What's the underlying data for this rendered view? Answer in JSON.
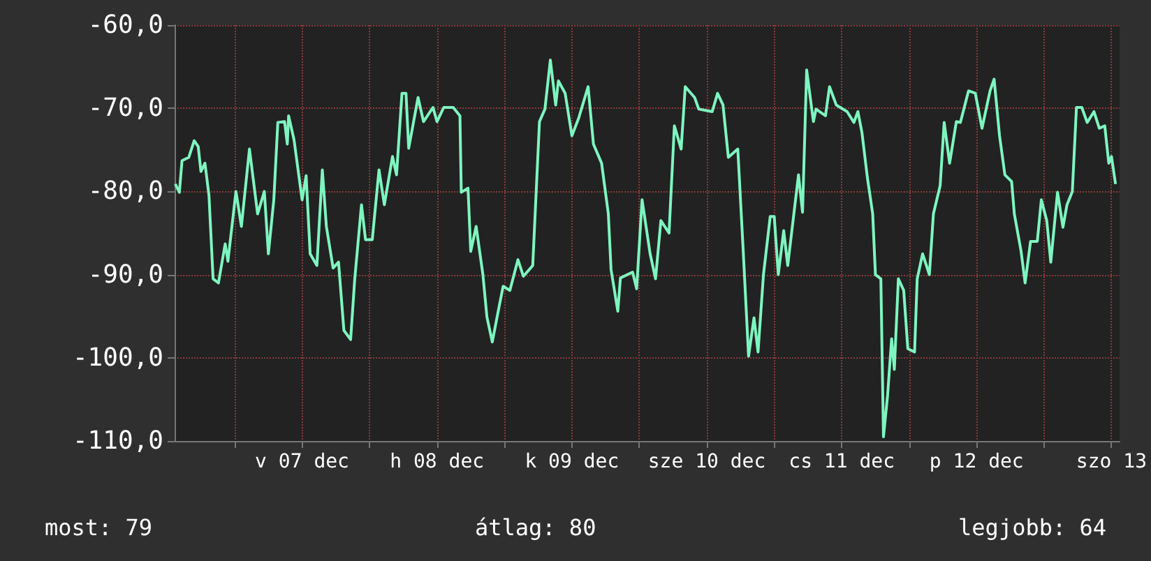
{
  "chart_data": {
    "type": "line",
    "grid": true,
    "line_style": "solid",
    "marker": "none",
    "xlim": [
      "--12-06T13:19",
      "--12-13T13:26"
    ],
    "xticks": [
      {
        "value": "--12-07T00:00",
        "label": null
      },
      {
        "value": "--12-07T12:00",
        "label": "v 07 dec"
      },
      {
        "value": "--12-08T00:00",
        "label": null
      },
      {
        "value": "--12-08T12:00",
        "label": "h 08 dec"
      },
      {
        "value": "--12-09T00:00",
        "label": null
      },
      {
        "value": "--12-09T12:00",
        "label": "k 09 dec"
      },
      {
        "value": "--12-10T00:00",
        "label": null
      },
      {
        "value": "--12-10T12:00",
        "label": "sze 10 dec"
      },
      {
        "value": "--12-11T00:00",
        "label": null
      },
      {
        "value": "--12-11T12:00",
        "label": "cs 11 dec"
      },
      {
        "value": "--12-12T00:00",
        "label": null
      },
      {
        "value": "--12-12T12:00",
        "label": "p 12 dec"
      },
      {
        "value": "--12-13T00:00",
        "label": null
      },
      {
        "value": "--12-13T12:00",
        "label": "szo 13"
      }
    ],
    "ylim": [
      -110,
      -60
    ],
    "yticks": [
      {
        "value": -110,
        "label": "-110,0"
      },
      {
        "value": -100,
        "label": "-100,0"
      },
      {
        "value": -90,
        "label": "-90,0"
      },
      {
        "value": -80,
        "label": "-80,0"
      },
      {
        "value": -70,
        "label": "-70,0"
      },
      {
        "value": -60,
        "label": "-60,0"
      }
    ],
    "annotations": [
      "most: 79",
      "átlag: 80",
      "legjobb: 64"
    ],
    "series": [
      {
        "color": "#7ef5c0",
        "x": [
          "--12-06T13:26",
          "--12-06T14:10",
          "--12-06T14:38",
          "--12-06T15:50",
          "--12-06T16:48",
          "--12-06T17:31",
          "--12-06T18:00",
          "--12-06T18:43",
          "--12-06T19:26",
          "--12-06T20:10",
          "--12-06T21:07",
          "--12-06T22:19",
          "--12-06T22:48",
          "--12-07T00:14",
          "--12-07T01:12",
          "--12-07T02:38",
          "--12-07T04:05",
          "--12-07T05:17",
          "--12-07T06:00",
          "--12-07T06:58",
          "--12-07T07:41",
          "--12-07T08:53",
          "--12-07T09:22",
          "--12-07T09:36",
          "--12-07T10:34",
          "--12-07T12:00",
          "--12-07T12:43",
          "--12-07T13:26",
          "--12-07T14:38",
          "--12-07T15:36",
          "--12-07T16:19",
          "--12-07T17:31",
          "--12-07T18:29",
          "--12-07T19:26",
          "--12-07T20:38",
          "--12-07T21:22",
          "--12-07T22:34",
          "--12-07T23:17",
          "--12-08T00:29",
          "--12-08T01:41",
          "--12-08T02:38",
          "--12-08T04:05",
          "--12-08T04:48",
          "--12-08T05:46",
          "--12-08T06:29",
          "--12-08T06:58",
          "--12-08T08:38",
          "--12-08T09:36",
          "--12-08T11:17",
          "--12-08T12:00",
          "--12-08T13:12",
          "--12-08T14:53",
          "--12-08T16:05",
          "--12-08T16:19",
          "--12-08T17:31",
          "--12-08T18:00",
          "--12-08T18:58",
          "--12-08T20:10",
          "--12-08T20:53",
          "--12-08T21:50",
          "--12-08T23:02",
          "--12-08T23:46",
          "--12-09T00:58",
          "--12-09T02:24",
          "--12-09T03:22",
          "--12-09T05:02",
          "--12-09T05:46",
          "--12-09T06:14",
          "--12-09T07:12",
          "--12-09T08:10",
          "--12-09T09:07",
          "--12-09T09:36",
          "--12-09T10:48",
          "--12-09T12:00",
          "--12-09T13:12",
          "--12-09T14:53",
          "--12-09T15:50",
          "--12-09T17:17",
          "--12-09T18:29",
          "--12-09T18:58",
          "--12-09T20:10",
          "--12-09T20:38",
          "--12-09T22:48",
          "--12-09T23:31",
          "--12-10T00:29",
          "--12-10T01:55",
          "--12-10T02:53",
          "--12-10T03:50",
          "--12-10T05:17",
          "--12-10T06:14",
          "--12-10T07:26",
          "--12-10T08:10",
          "--12-10T09:50",
          "--12-10T10:34",
          "--12-10T12:58",
          "--12-10T13:55",
          "--12-10T14:53",
          "--12-10T15:50",
          "--12-10T17:31",
          "--12-10T18:29",
          "--12-10T19:26",
          "--12-10T20:24",
          "--12-10T21:07",
          "--12-10T22:05",
          "--12-10T23:17",
          "--12-11T00:00",
          "--12-11T00:43",
          "--12-11T01:41",
          "--12-11T02:24",
          "--12-11T04:19",
          "--12-11T05:02",
          "--12-11T05:46",
          "--12-11T06:58",
          "--12-11T07:26",
          "--12-11T09:07",
          "--12-11T09:50",
          "--12-11T11:02",
          "--12-11T12:58",
          "--12-11T14:10",
          "--12-11T14:53",
          "--12-11T15:36",
          "--12-11T16:34",
          "--12-11T17:31",
          "--12-11T18:00",
          "--12-11T18:58",
          "--12-11T19:26",
          "--12-11T20:10",
          "--12-11T20:53",
          "--12-11T21:22",
          "--12-11T22:05",
          "--12-11T23:02",
          "--12-11T23:46",
          "--12-12T00:58",
          "--12-12T01:26",
          "--12-12T02:24",
          "--12-12T03:36",
          "--12-12T04:19",
          "--12-12T05:31",
          "--12-12T06:14",
          "--12-12T07:12",
          "--12-12T08:24",
          "--12-12T09:07",
          "--12-12T10:34",
          "--12-12T11:46",
          "--12-12T12:58",
          "--12-12T14:24",
          "--12-12T15:07",
          "--12-12T16:05",
          "--12-12T17:02",
          "--12-12T18:14",
          "--12-12T18:43",
          "--12-12T19:55",
          "--12-12T20:38",
          "--12-12T21:36",
          "--12-12T22:48",
          "--12-12T23:31",
          "--12-13T00:29",
          "--12-13T01:12",
          "--12-13T02:24",
          "--12-13T03:22",
          "--12-13T04:05",
          "--12-13T05:02",
          "--12-13T05:46",
          "--12-13T06:43",
          "--12-13T07:41",
          "--12-13T08:53",
          "--12-13T09:50",
          "--12-13T10:48",
          "--12-13T11:31",
          "--12-13T12:00",
          "--12-13T12:43"
        ],
        "values": [
          -79.1,
          -80.1,
          -76.3,
          -75.9,
          -73.9,
          -74.6,
          -77.6,
          -76.6,
          -80.5,
          -90.5,
          -91.0,
          -86.3,
          -88.4,
          -80.0,
          -84.2,
          -74.9,
          -82.7,
          -80.0,
          -87.5,
          -81.0,
          -71.7,
          -71.6,
          -74.3,
          -70.9,
          -73.8,
          -81.0,
          -78.1,
          -87.5,
          -88.9,
          -77.4,
          -84.2,
          -89.2,
          -88.5,
          -96.7,
          -97.8,
          -90.5,
          -81.6,
          -85.8,
          -85.8,
          -77.4,
          -81.6,
          -75.8,
          -78.0,
          -68.2,
          -68.2,
          -74.8,
          -68.7,
          -71.6,
          -69.9,
          -71.6,
          -69.9,
          -69.9,
          -70.9,
          -80.1,
          -79.6,
          -87.2,
          -84.2,
          -90.0,
          -95.1,
          -98.1,
          -93.9,
          -91.4,
          -91.9,
          -88.2,
          -90.2,
          -88.9,
          -78.3,
          -71.6,
          -70.1,
          -64.2,
          -69.6,
          -66.7,
          -68.2,
          -73.3,
          -71.2,
          -67.4,
          -74.3,
          -76.6,
          -82.7,
          -89.4,
          -94.4,
          -90.4,
          -89.7,
          -91.7,
          -81.0,
          -87.5,
          -90.5,
          -83.5,
          -85.0,
          -72.1,
          -74.9,
          -67.4,
          -68.7,
          -70.1,
          -70.4,
          -68.2,
          -69.6,
          -75.9,
          -74.9,
          -87.2,
          -99.8,
          -95.2,
          -99.3,
          -90.0,
          -83.0,
          -83.0,
          -90.0,
          -84.7,
          -88.9,
          -78.0,
          -82.5,
          -65.4,
          -71.6,
          -70.1,
          -70.9,
          -67.4,
          -69.6,
          -70.4,
          -71.7,
          -70.4,
          -72.9,
          -78.3,
          -82.7,
          -90.0,
          -90.5,
          -109.5,
          -104.5,
          -97.7,
          -101.4,
          -90.5,
          -91.9,
          -98.9,
          -99.3,
          -90.5,
          -87.5,
          -90.0,
          -82.7,
          -79.3,
          -71.7,
          -76.6,
          -71.6,
          -71.7,
          -67.9,
          -68.2,
          -72.4,
          -67.9,
          -66.5,
          -73.3,
          -78.0,
          -78.8,
          -82.7,
          -87.2,
          -91.0,
          -86.0,
          -86.0,
          -81.0,
          -83.5,
          -88.5,
          -80.1,
          -84.3,
          -81.6,
          -80.0,
          -69.9,
          -69.9,
          -71.7,
          -70.4,
          -72.4,
          -72.1,
          -76.6,
          -75.8,
          -79.1
        ]
      }
    ]
  }
}
